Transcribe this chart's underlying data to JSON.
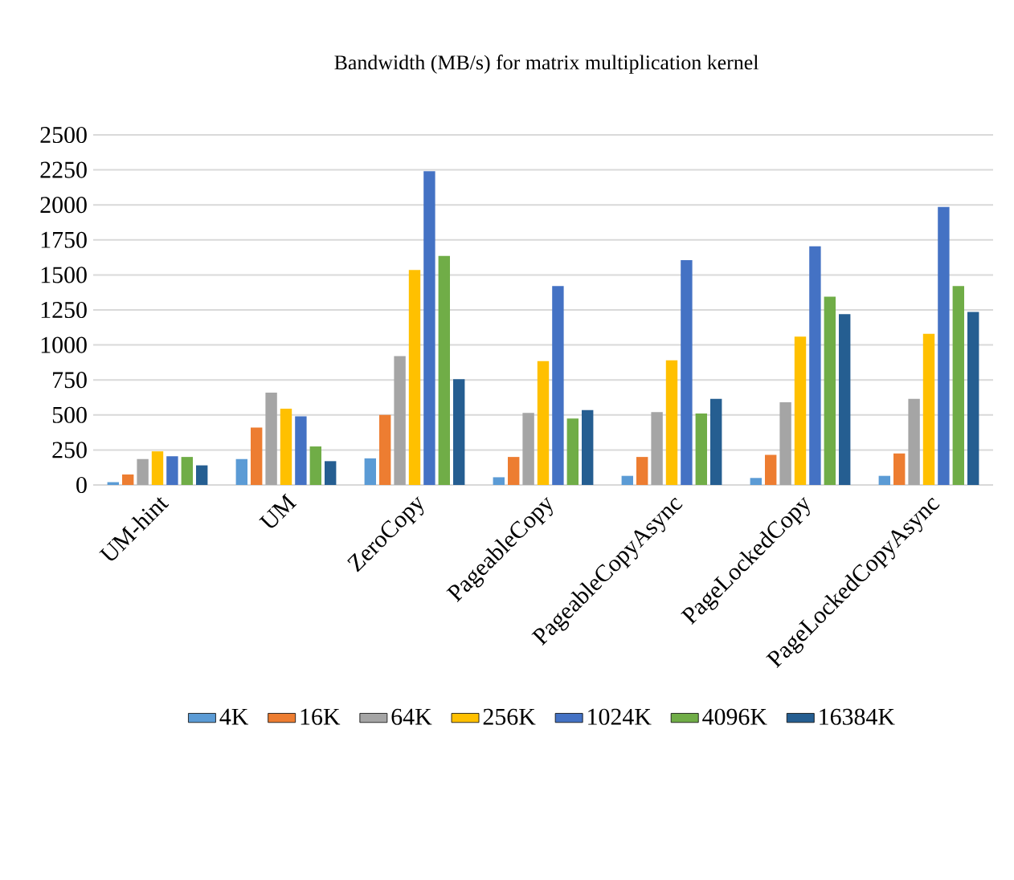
{
  "chart_data": {
    "type": "bar",
    "title": "Bandwidth (MB/s)  for matrix multiplication kernel",
    "categories": [
      "UM-hint",
      "UM",
      "ZeroCopy",
      "PageableCopy",
      "PageableCopyAsync",
      "PageLockedCopy",
      "PageLockedCopyAsync"
    ],
    "series": [
      {
        "name": "4K",
        "color": "#5b9bd5",
        "values": [
          20,
          185,
          190,
          55,
          65,
          50,
          65
        ]
      },
      {
        "name": "16K",
        "color": "#ed7d31",
        "values": [
          75,
          410,
          500,
          200,
          200,
          215,
          225
        ]
      },
      {
        "name": "64K",
        "color": "#a5a5a5",
        "values": [
          185,
          660,
          920,
          515,
          520,
          590,
          615
        ]
      },
      {
        "name": "256K",
        "color": "#ffc000",
        "values": [
          240,
          545,
          1535,
          885,
          890,
          1060,
          1080
        ]
      },
      {
        "name": "1024K",
        "color": "#4472c4",
        "values": [
          205,
          490,
          2240,
          1420,
          1605,
          1705,
          1985
        ]
      },
      {
        "name": "4096K",
        "color": "#70ad47",
        "values": [
          200,
          275,
          1635,
          475,
          510,
          1345,
          1420
        ]
      },
      {
        "name": "16384K",
        "color": "#255e91",
        "values": [
          140,
          170,
          755,
          535,
          615,
          1220,
          1235
        ]
      }
    ],
    "ylim": [
      0,
      2500
    ],
    "yticks": [
      0,
      250,
      500,
      750,
      1000,
      1250,
      1500,
      1750,
      2000,
      2250,
      2500
    ],
    "grid": "y",
    "legend": "bottom"
  }
}
